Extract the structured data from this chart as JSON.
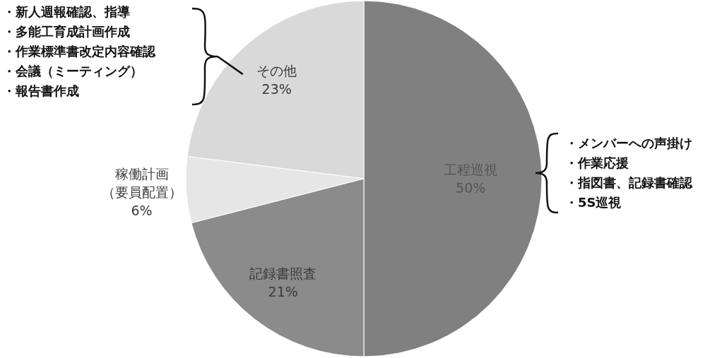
{
  "chart_data": {
    "type": "pie",
    "categories": [
      "工程巡視",
      "記録書照査",
      "稼働計画（要員配置）",
      "その他"
    ],
    "values": [
      50,
      21,
      6,
      23
    ],
    "value_labels": [
      "50%",
      "21%",
      "6%",
      "23%"
    ],
    "colors": [
      "#808080",
      "#8b8b8b",
      "#e6e6e6",
      "#d9d9d9"
    ],
    "annotations": [
      {
        "text": "・新人週報確認、指導",
        "x": "その他"
      },
      {
        "text": "・多能工育成計画作成",
        "x": "その他"
      },
      {
        "text": "・作業標準書改定内容確認",
        "x": "その他"
      },
      {
        "text": "・会議（ミーティング）",
        "x": "その他"
      },
      {
        "text": "・報告書作成",
        "x": "その他"
      },
      {
        "text": "・メンバーへの声掛け",
        "x": "工程巡視"
      },
      {
        "text": "・作業応援",
        "x": "工程巡視"
      },
      {
        "text": "・指図書、記録書確認",
        "x": "工程巡視"
      },
      {
        "text": "・5S巡視",
        "x": "工程巡視"
      }
    ]
  }
}
